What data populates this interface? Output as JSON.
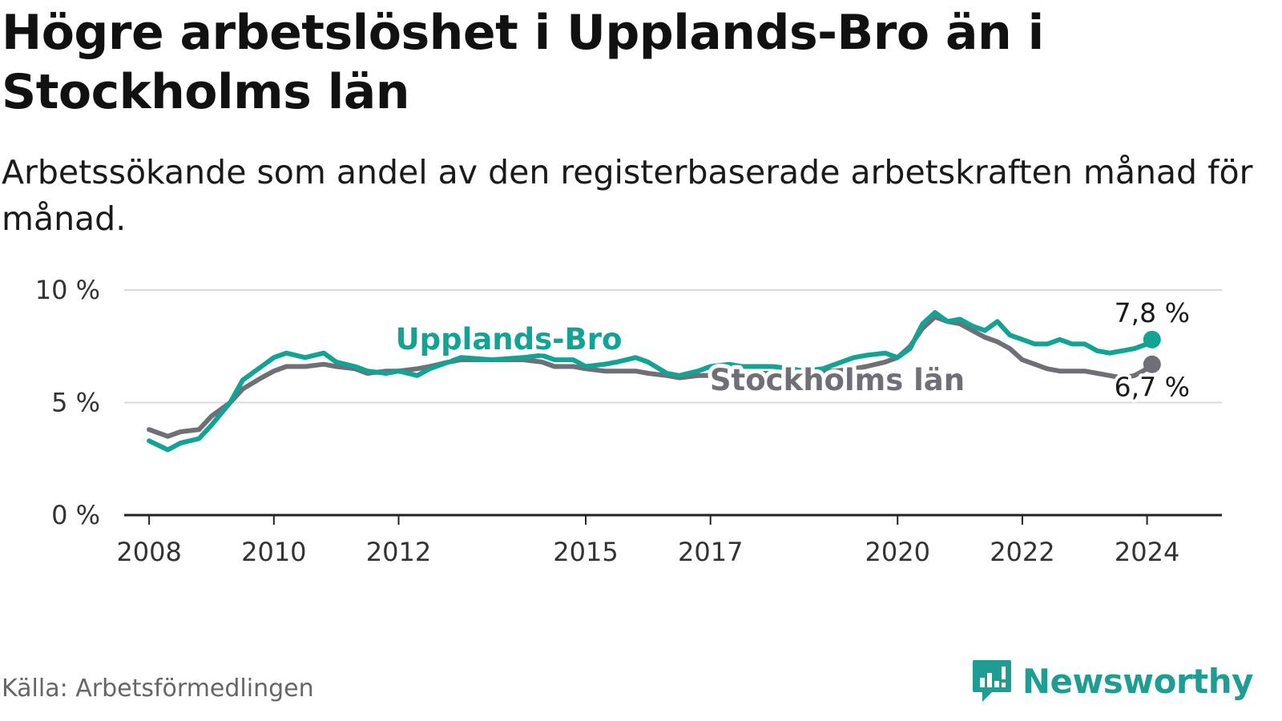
{
  "title": "Högre arbetslöshet i Upplands-Bro än i Stockholms län",
  "subtitle": "Arbetssökande som andel av den registerbaserade arbetskraften månad för månad.",
  "source": "Källa: Arbetsförmedlingen",
  "brand": {
    "name": "Newsworthy",
    "icon": "newsworthy-logo-icon",
    "color": "#1e9e93"
  },
  "colors": {
    "upplands": "#12a394",
    "stockholm": "#6f6f78",
    "grid": "#d9d9d9",
    "axis": "#222222"
  },
  "chart_data": {
    "type": "line",
    "title": "Högre arbetslöshet i Upplands-Bro än i Stockholms län",
    "xlabel": "",
    "ylabel": "",
    "xlim": [
      2007.6,
      2025.2
    ],
    "ylim": [
      0,
      10
    ],
    "yticks": [
      0,
      5,
      10
    ],
    "ytick_labels": [
      "0 %",
      "5 %",
      "10 %"
    ],
    "xticks": [
      2008,
      2010,
      2012,
      2015,
      2017,
      2020,
      2022,
      2024
    ],
    "xtick_labels": [
      "2008",
      "2010",
      "2012",
      "2015",
      "2017",
      "2020",
      "2022",
      "2024"
    ],
    "grid": true,
    "series": [
      {
        "name": "Stockholms län",
        "label": "Stockholms län",
        "end_label": "6,7 %",
        "x": [
          2008.0,
          2008.3,
          2008.5,
          2008.8,
          2009.0,
          2009.3,
          2009.5,
          2009.8,
          2010.0,
          2010.2,
          2010.5,
          2010.8,
          2011.0,
          2011.3,
          2011.5,
          2011.8,
          2012.0,
          2012.3,
          2012.5,
          2012.8,
          2013.0,
          2013.5,
          2014.0,
          2014.3,
          2014.5,
          2014.8,
          2015.0,
          2015.3,
          2015.5,
          2015.8,
          2016.0,
          2016.3,
          2016.5,
          2016.8,
          2017.0,
          2017.3,
          2017.5,
          2017.8,
          2018.0,
          2018.3,
          2018.5,
          2018.8,
          2019.0,
          2019.3,
          2019.5,
          2019.8,
          2020.0,
          2020.2,
          2020.4,
          2020.6,
          2020.8,
          2021.0,
          2021.2,
          2021.4,
          2021.6,
          2021.8,
          2022.0,
          2022.2,
          2022.4,
          2022.6,
          2022.8,
          2023.0,
          2023.2,
          2023.4,
          2023.6,
          2023.8,
          2024.0,
          2024.08
        ],
        "values": [
          3.8,
          3.5,
          3.7,
          3.8,
          4.4,
          5.0,
          5.6,
          6.1,
          6.4,
          6.6,
          6.6,
          6.7,
          6.6,
          6.5,
          6.3,
          6.4,
          6.4,
          6.5,
          6.6,
          6.8,
          6.9,
          6.9,
          6.9,
          6.8,
          6.6,
          6.6,
          6.5,
          6.4,
          6.4,
          6.4,
          6.3,
          6.2,
          6.1,
          6.2,
          6.2,
          6.3,
          6.3,
          6.3,
          6.3,
          6.3,
          6.3,
          6.4,
          6.4,
          6.5,
          6.6,
          6.8,
          7.0,
          7.5,
          8.3,
          8.8,
          8.6,
          8.5,
          8.2,
          7.9,
          7.7,
          7.4,
          6.9,
          6.7,
          6.5,
          6.4,
          6.4,
          6.4,
          6.3,
          6.2,
          6.1,
          6.2,
          6.5,
          6.7
        ]
      },
      {
        "name": "Upplands-Bro",
        "label": "Upplands-Bro",
        "end_label": "7,8 %",
        "x": [
          2008.0,
          2008.3,
          2008.5,
          2008.8,
          2009.0,
          2009.3,
          2009.5,
          2009.8,
          2010.0,
          2010.2,
          2010.5,
          2010.8,
          2011.0,
          2011.3,
          2011.5,
          2011.8,
          2012.0,
          2012.3,
          2012.5,
          2012.8,
          2013.0,
          2013.5,
          2014.0,
          2014.3,
          2014.5,
          2014.8,
          2015.0,
          2015.3,
          2015.5,
          2015.8,
          2016.0,
          2016.3,
          2016.5,
          2016.8,
          2017.0,
          2017.3,
          2017.5,
          2017.8,
          2018.0,
          2018.3,
          2018.5,
          2018.8,
          2019.0,
          2019.3,
          2019.5,
          2019.8,
          2020.0,
          2020.2,
          2020.4,
          2020.6,
          2020.8,
          2021.0,
          2021.2,
          2021.4,
          2021.6,
          2021.8,
          2022.0,
          2022.2,
          2022.4,
          2022.6,
          2022.8,
          2023.0,
          2023.2,
          2023.4,
          2023.6,
          2023.8,
          2024.0,
          2024.08
        ],
        "values": [
          3.3,
          2.9,
          3.2,
          3.4,
          4.0,
          5.0,
          6.0,
          6.6,
          7.0,
          7.2,
          7.0,
          7.2,
          6.8,
          6.6,
          6.4,
          6.3,
          6.4,
          6.2,
          6.5,
          6.8,
          7.0,
          6.9,
          7.0,
          7.1,
          6.9,
          6.9,
          6.6,
          6.7,
          6.8,
          7.0,
          6.8,
          6.3,
          6.2,
          6.4,
          6.6,
          6.7,
          6.6,
          6.6,
          6.6,
          6.5,
          6.4,
          6.5,
          6.7,
          7.0,
          7.1,
          7.2,
          7.0,
          7.4,
          8.5,
          9.0,
          8.6,
          8.7,
          8.4,
          8.2,
          8.6,
          8.0,
          7.8,
          7.6,
          7.6,
          7.8,
          7.6,
          7.6,
          7.3,
          7.2,
          7.3,
          7.4,
          7.6,
          7.8
        ]
      }
    ]
  }
}
